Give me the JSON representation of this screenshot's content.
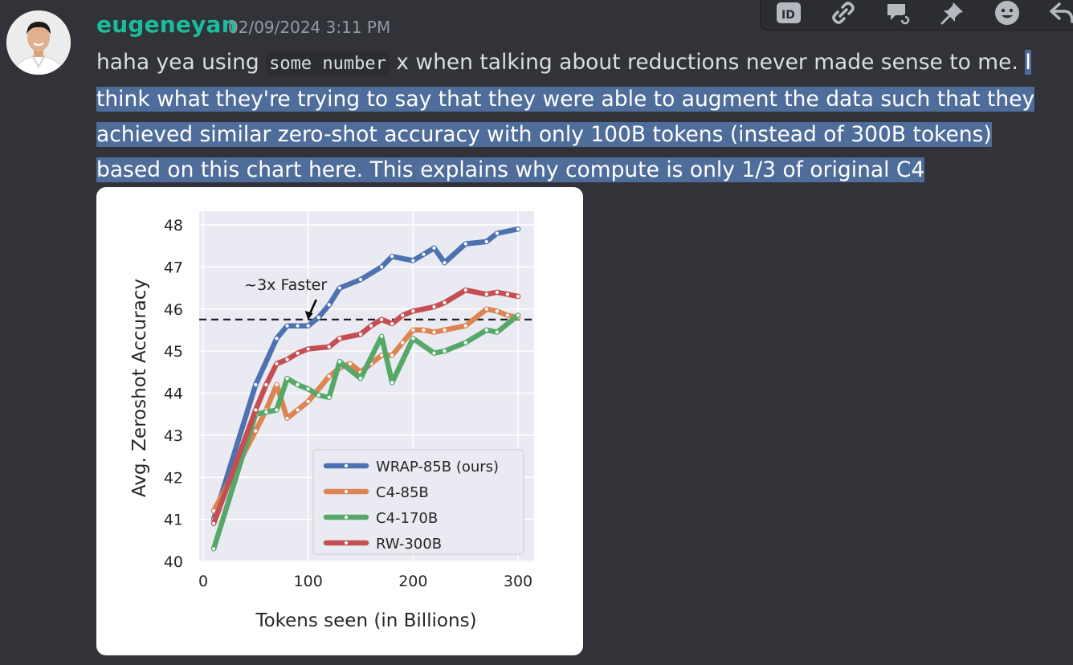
{
  "message": {
    "username": "eugeneyan",
    "timestamp": "02/09/2024 3:11 PM",
    "text_before": "haha yea using ",
    "inline_code": "some number",
    "text_after": " x when talking about reductions never made sense to me. ",
    "selected_text": "I think what they're trying to say that they were able to augment the data such that they achieved similar zero-shot accuracy with only 100B tokens (instead of 300B tokens) based on this chart here. This explains why compute is only 1/3 of original C4"
  },
  "toolbar": {
    "icons": [
      "id-icon",
      "link-icon",
      "reply-thread-icon",
      "pin-icon",
      "emoji-icon",
      "reply-icon"
    ]
  },
  "colors": {
    "username": "#1abc9c",
    "selection": "#4f6d9a",
    "background": "#313338"
  },
  "chart_data": {
    "type": "line",
    "xlabel": "Tokens seen (in Billions)",
    "ylabel": "Avg. Zeroshot Accuracy",
    "xlim": [
      0,
      310
    ],
    "ylim": [
      40,
      48.3
    ],
    "xticks": [
      0,
      100,
      200,
      300
    ],
    "yticks": [
      40,
      41,
      42,
      43,
      44,
      45,
      46,
      47,
      48
    ],
    "grid": true,
    "legend_position": "bottom-right",
    "reference_line": 45.75,
    "annotation": "~3x Faster",
    "annotation_point": [
      100,
      45.65
    ],
    "series": [
      {
        "name": "WRAP-85B (ours)",
        "color": "#4c72b0",
        "x": [
          10,
          50,
          70,
          80,
          90,
          100,
          110,
          120,
          130,
          150,
          170,
          180,
          200,
          210,
          220,
          230,
          250,
          270,
          280,
          300
        ],
        "y": [
          41.0,
          44.2,
          45.3,
          45.6,
          45.6,
          45.6,
          45.8,
          46.1,
          46.5,
          46.7,
          47.0,
          47.25,
          47.15,
          47.3,
          47.45,
          47.1,
          47.55,
          47.6,
          47.8,
          47.9
        ]
      },
      {
        "name": "C4-85B",
        "color": "#dd8452",
        "x": [
          10,
          50,
          60,
          70,
          80,
          90,
          100,
          120,
          130,
          140,
          150,
          160,
          170,
          180,
          190,
          200,
          210,
          220,
          230,
          250,
          270,
          280,
          290,
          300
        ],
        "y": [
          41.2,
          43.1,
          43.6,
          44.2,
          43.4,
          43.6,
          43.8,
          44.4,
          44.6,
          44.7,
          44.5,
          44.7,
          44.9,
          44.9,
          45.2,
          45.5,
          45.5,
          45.45,
          45.5,
          45.6,
          46.0,
          45.95,
          45.85,
          45.8
        ]
      },
      {
        "name": "C4-170B",
        "color": "#55a868",
        "x": [
          10,
          50,
          60,
          70,
          80,
          90,
          100,
          110,
          120,
          130,
          150,
          170,
          180,
          200,
          220,
          230,
          250,
          270,
          280,
          300
        ],
        "y": [
          40.3,
          43.5,
          43.55,
          43.6,
          44.35,
          44.2,
          44.1,
          43.95,
          43.9,
          44.75,
          44.35,
          45.35,
          44.25,
          45.3,
          44.95,
          45.0,
          45.2,
          45.5,
          45.45,
          45.85
        ]
      },
      {
        "name": "RW-300B",
        "color": "#c44e52",
        "x": [
          10,
          50,
          60,
          70,
          80,
          90,
          100,
          120,
          130,
          150,
          160,
          170,
          180,
          190,
          200,
          220,
          230,
          250,
          270,
          280,
          290,
          300
        ],
        "y": [
          40.9,
          43.6,
          44.2,
          44.7,
          44.8,
          44.95,
          45.05,
          45.1,
          45.3,
          45.4,
          45.6,
          45.75,
          45.65,
          45.85,
          45.95,
          46.05,
          46.15,
          46.45,
          46.35,
          46.4,
          46.35,
          46.3
        ]
      }
    ]
  }
}
